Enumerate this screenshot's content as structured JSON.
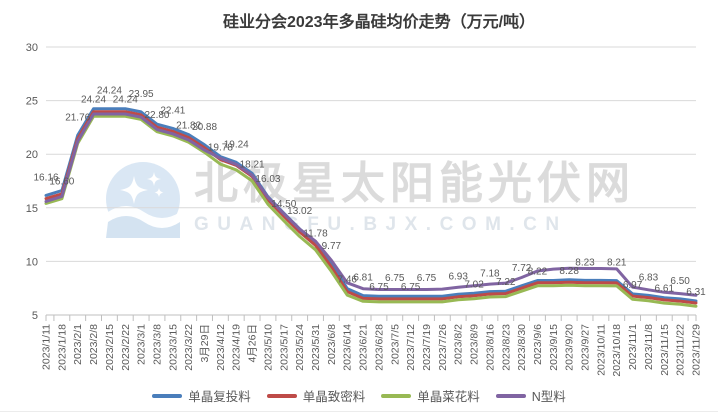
{
  "title": "硅业分会2023年多晶硅均价走势（万元/吨）",
  "watermark": {
    "name": "北极星太阳能光伏网",
    "url": "GUANGFU.BJX.COM.CN"
  },
  "chart_data": {
    "type": "line",
    "title": "硅业分会2023年多晶硅均价走势（万元/吨）",
    "xlabel": "",
    "ylabel": "",
    "ylim": [
      5,
      30
    ],
    "y_ticks": [
      30,
      25,
      20,
      15,
      10,
      5
    ],
    "grid": "horizontal",
    "legend_position": "bottom",
    "x_labels": [
      "2023/1/11",
      "2023/1/18",
      "2023/2/1",
      "2023/2/8",
      "2023/2/15",
      "2023/2/22",
      "2023/3/1",
      "2023/3/8",
      "2023/3/15",
      "2023/3/22",
      "3月29日",
      "2023/4/12",
      "2023/4/19",
      "4月26日",
      "2023/5/10",
      "2023/5/17",
      "2023/5/24",
      "2023/5/31",
      "2023/6/8",
      "2023/6/14",
      "2023/6/21",
      "2023/6/28",
      "2023/7/5",
      "2023/7/12",
      "2023/7/19",
      "2023/7/26",
      "2023/8/2",
      "2023/8/9",
      "2023/8/16",
      "2023/8/23",
      "2023/8/30",
      "2023/9/6",
      "2023/9/15",
      "2023/9/20",
      "2023/9/27",
      "2023/10/11",
      "2023/10/18",
      "2023/11/1",
      "2023/11/8",
      "2023/11/15",
      "2023/11/22",
      "2023/11/29"
    ],
    "series": [
      {
        "name": "单晶复投料",
        "color": "#4a7ebb",
        "values": [
          16.16,
          16.6,
          21.76,
          24.24,
          24.24,
          24.24,
          23.95,
          22.8,
          22.41,
          21.82,
          20.88,
          19.78,
          19.24,
          18.21,
          16.03,
          14.5,
          13.02,
          11.78,
          9.77,
          7.46,
          6.81,
          6.75,
          6.75,
          6.75,
          6.75,
          6.75,
          6.93,
          7.02,
          7.18,
          7.22,
          7.72,
          8.22,
          8.22,
          8.28,
          8.23,
          8.23,
          8.21,
          6.97,
          6.83,
          6.61,
          6.5,
          6.31
        ]
      },
      {
        "name": "单晶致密料",
        "color": "#be4b48",
        "values": [
          15.86,
          16.3,
          21.46,
          23.96,
          23.96,
          23.96,
          23.67,
          22.52,
          22.13,
          21.54,
          20.6,
          19.5,
          18.96,
          17.93,
          15.75,
          14.22,
          12.74,
          11.5,
          9.49,
          7.18,
          6.55,
          6.5,
          6.5,
          6.5,
          6.5,
          6.5,
          6.7,
          6.8,
          6.96,
          7.0,
          7.5,
          8.0,
          8.0,
          8.06,
          8.01,
          8.01,
          7.99,
          6.76,
          6.62,
          6.41,
          6.3,
          6.12
        ]
      },
      {
        "name": "单晶菜花料",
        "color": "#98b954",
        "values": [
          15.41,
          15.85,
          21.01,
          23.54,
          23.54,
          23.54,
          23.25,
          22.1,
          21.71,
          21.12,
          20.18,
          19.08,
          18.54,
          17.51,
          15.33,
          13.8,
          12.32,
          11.08,
          9.07,
          6.86,
          6.28,
          6.22,
          6.22,
          6.22,
          6.22,
          6.22,
          6.42,
          6.52,
          6.68,
          6.72,
          7.22,
          7.72,
          7.72,
          7.78,
          7.73,
          7.73,
          7.71,
          6.46,
          6.32,
          6.11,
          6.0,
          5.82
        ]
      },
      {
        "name": "N型料",
        "color": "#8064a2",
        "values": [
          15.6,
          16.05,
          21.2,
          23.75,
          23.75,
          23.75,
          23.45,
          22.3,
          21.9,
          21.32,
          20.38,
          19.62,
          19.05,
          18.05,
          15.95,
          14.45,
          13.0,
          11.88,
          10.1,
          8.0,
          7.45,
          7.38,
          7.38,
          7.38,
          7.38,
          7.42,
          7.58,
          7.72,
          7.88,
          7.98,
          8.5,
          9.1,
          9.28,
          9.36,
          9.34,
          9.34,
          9.3,
          7.6,
          7.35,
          7.12,
          7.0,
          6.85
        ]
      }
    ],
    "data_labels": {
      "series": "单晶复投料",
      "values": [
        "16.16",
        "16.60",
        "21.76",
        "24.24",
        "24.24",
        "24.24",
        "23.95",
        "22.80",
        "22.41",
        "21.82",
        "20.88",
        "19.78",
        "19.24",
        "18.21",
        "16.03",
        "14.50",
        "13.02",
        "11.78",
        "9.77",
        "7.46",
        "6.81",
        "6.75",
        "6.75",
        "6.75",
        "6.75",
        null,
        "6.93",
        "7.02",
        "7.18",
        "7.22",
        "7.72",
        "8.22",
        null,
        "8.28",
        "8.23",
        null,
        "8.21",
        "6.97",
        "6.83",
        "6.61",
        "6.50",
        "6.31"
      ]
    },
    "colors": {
      "gridline": "#d9d9d9",
      "axis": "#bfbfbf",
      "tick_text": "#595959",
      "label_text": "#595959"
    }
  }
}
